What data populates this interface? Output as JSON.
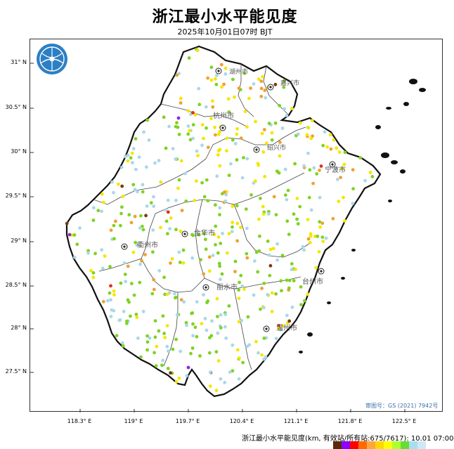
{
  "header": {
    "title": "浙江最小水平能见度",
    "subtitle": "2025年10月01日07时 BJT"
  },
  "axes": {
    "y_labels": [
      "31° N",
      "30.5° N",
      "30° N",
      "29.5° N",
      "29° N",
      "28.5° N",
      "28° N",
      "27.5° N"
    ],
    "x_labels": [
      "118.3° E",
      "119° E",
      "119.7° E",
      "120.4° E",
      "121.1° E",
      "121.8° E",
      "122.5° E"
    ]
  },
  "cities": [
    {
      "name": "湖州市"
    },
    {
      "name": "嘉兴市"
    },
    {
      "name": "杭州市"
    },
    {
      "name": "绍兴市"
    },
    {
      "name": "宁波市"
    },
    {
      "name": "金华市"
    },
    {
      "name": "衢州市"
    },
    {
      "name": "台州市"
    },
    {
      "name": "丽水市"
    },
    {
      "name": "温州市"
    }
  ],
  "approval": "审图号：GS (2021) 7942号",
  "footer": {
    "label": "浙江最小水平能见度(km, 有效站/所有站:675/7617): 10.01 07:00"
  },
  "legend_colors": [
    "#5a2a0a",
    "#8b00ff",
    "#ff0000",
    "#ff6a00",
    "#ffa640",
    "#ffd700",
    "#ffff00",
    "#adff2f",
    "#66dd33",
    "#aaddee",
    "#cfe8f5"
  ],
  "station_colors": {
    "lightblue": "#a8d8ea",
    "green": "#7ed321",
    "yellow": "#f5e600",
    "orange": "#f0a030",
    "red": "#e03020",
    "brown": "#7a3a10",
    "purple": "#8a2be2"
  }
}
